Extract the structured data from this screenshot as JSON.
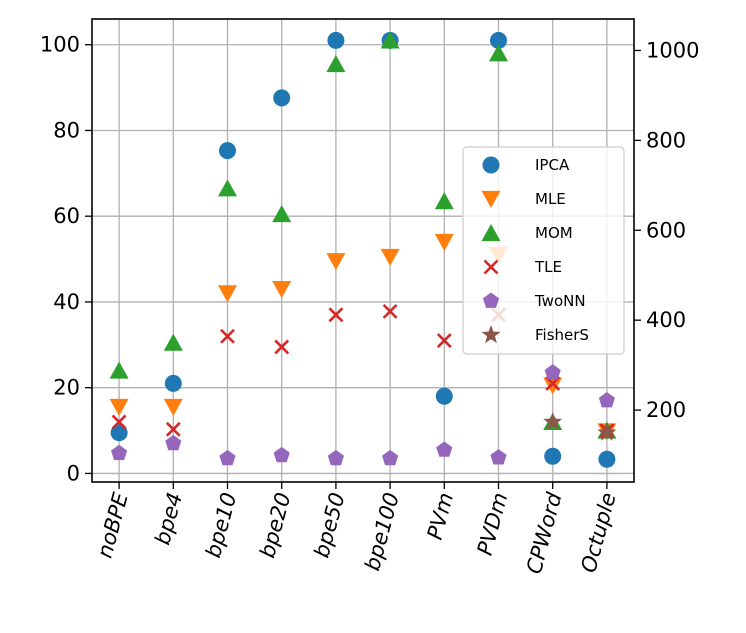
{
  "chart_data": {
    "type": "scatter",
    "title": "",
    "xlabel": "",
    "ylabel": "",
    "categories": [
      "noBPE",
      "bpe4",
      "bpe10",
      "bpe20",
      "bpe50",
      "bpe100",
      "PVm",
      "PVDm",
      "CPWord",
      "Octuple"
    ],
    "ylim": [
      -2,
      106
    ],
    "yticks": [
      0,
      20,
      40,
      60,
      80,
      100
    ],
    "y2lim": [
      40,
      1070
    ],
    "y2ticks": [
      200,
      400,
      600,
      800,
      1000
    ],
    "grid": true,
    "legend_position": "center-right",
    "series": [
      {
        "name": "IPCA",
        "marker": "circle",
        "color": "#1f77b4",
        "values": [
          9.5,
          21,
          75.3,
          87.6,
          101,
          101,
          18,
          101,
          4,
          3.3
        ]
      },
      {
        "name": "MLE",
        "marker": "triangle-down",
        "color": "#ff7f0e",
        "values": [
          15.5,
          15.5,
          42,
          43,
          49.5,
          50.5,
          54,
          51,
          20.5,
          9.8
        ]
      },
      {
        "name": "MOM",
        "marker": "triangle-up",
        "color": "#2ca02c",
        "values": [
          24,
          30.5,
          66.5,
          60.5,
          95.5,
          101,
          63.5,
          98,
          12,
          10
        ]
      },
      {
        "name": "TLE",
        "marker": "x",
        "color": "#d62728",
        "values": [
          12,
          10.3,
          32,
          29.5,
          37,
          37.8,
          31,
          37,
          21,
          10
        ]
      },
      {
        "name": "TwoNN",
        "marker": "pentagon",
        "color": "#9467bd",
        "values": [
          4.7,
          7,
          3.5,
          4.2,
          3.5,
          3.5,
          5.5,
          3.7,
          23.5,
          17
        ]
      },
      {
        "name": "FisherS",
        "marker": "star",
        "color": "#8c564b",
        "values": [
          null,
          null,
          null,
          null,
          null,
          null,
          null,
          null,
          12,
          9.5
        ]
      }
    ]
  }
}
